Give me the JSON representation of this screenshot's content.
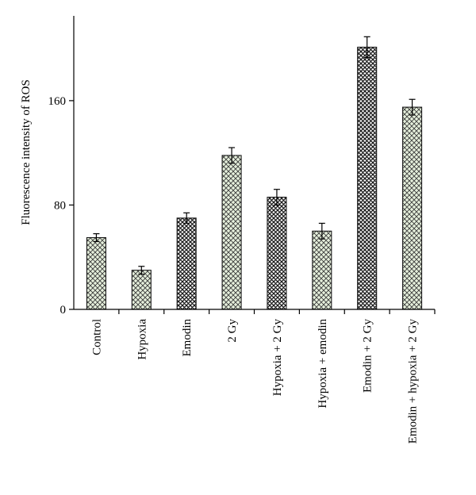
{
  "chart_data": {
    "type": "bar",
    "title": "",
    "xlabel": "",
    "ylabel": "Fluorescence intensity of ROS",
    "ylim": [
      0,
      225
    ],
    "yticks": [
      0,
      80,
      160
    ],
    "grid": false,
    "categories": [
      "Control",
      "Hypoxia",
      "Emodin",
      "2 Gy",
      "Hypoxia + 2 Gy",
      "Hypoxia + emodin",
      "Emodin + 2 Gy",
      "Emodin + hypoxia + 2 Gy"
    ],
    "values": [
      55,
      30,
      70,
      118,
      86,
      60,
      201,
      155
    ],
    "errors": [
      3,
      3,
      4,
      6,
      6,
      6,
      8,
      6
    ],
    "patterns": [
      "light",
      "light",
      "dark",
      "light",
      "dark",
      "light",
      "dark",
      "light"
    ],
    "colors": {
      "light_fill": "#e6f0dc",
      "light_line": "#3a3a3a",
      "dark_fill": "#ffffff",
      "dark_line": "#1a1a1a",
      "outline": "#000000"
    }
  }
}
